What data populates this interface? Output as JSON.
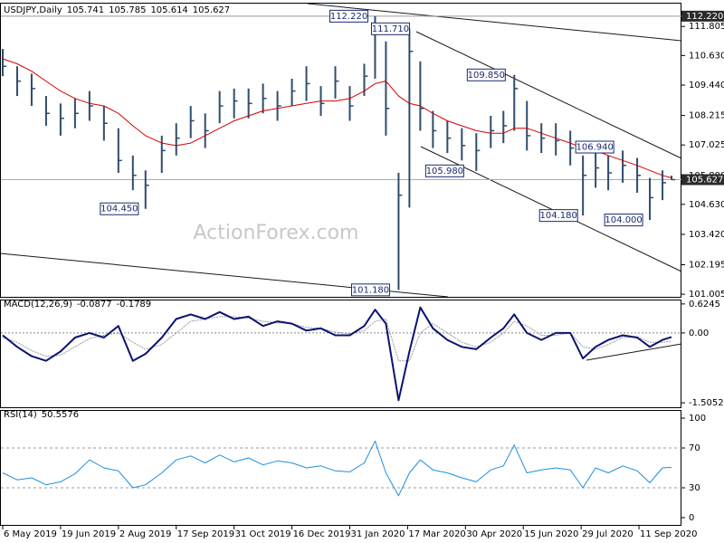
{
  "chart_data": [
    {
      "type": "ohlc",
      "title": "USDJPY,Daily",
      "header_values": [
        105.741,
        105.785,
        105.614,
        105.627
      ],
      "color": "#2f4d6b",
      "xlim": [
        -1,
        375.5
      ],
      "ylim": [
        100.9,
        112.58
      ],
      "x": [
        0,
        8,
        16,
        24,
        32,
        40,
        48,
        56,
        64,
        72,
        79,
        88,
        96,
        104,
        112,
        120,
        128,
        136,
        144,
        152,
        160,
        168,
        176,
        184,
        192,
        200,
        206,
        212,
        219,
        225,
        231,
        238,
        246,
        254,
        262,
        270,
        277,
        283,
        290,
        298,
        306,
        314,
        321,
        328,
        335,
        343,
        351,
        358,
        365,
        370
      ],
      "high": [
        110.9,
        110.2,
        109.9,
        109.0,
        108.7,
        108.9,
        109.2,
        108.6,
        107.7,
        106.6,
        106.0,
        107.4,
        107.9,
        108.6,
        108.3,
        109.2,
        109.3,
        109.3,
        109.5,
        109.2,
        109.7,
        110.2,
        109.4,
        110.2,
        109.4,
        110.3,
        112.22,
        111.2,
        105.9,
        111.71,
        110.4,
        108.4,
        108.0,
        107.7,
        107.5,
        108.2,
        108.4,
        109.85,
        108.8,
        107.9,
        107.9,
        107.6,
        106.6,
        106.94,
        106.6,
        106.8,
        106.5,
        105.7,
        106.0,
        105.785
      ],
      "low": [
        109.8,
        109.0,
        108.6,
        107.8,
        107.4,
        107.7,
        108.0,
        107.2,
        105.9,
        105.2,
        104.45,
        105.9,
        106.6,
        107.3,
        106.9,
        107.9,
        108.1,
        108.1,
        108.3,
        108.0,
        108.6,
        108.8,
        108.2,
        108.9,
        108.0,
        109.0,
        109.7,
        107.4,
        101.18,
        104.5,
        107.6,
        106.9,
        106.7,
        106.4,
        105.98,
        106.9,
        107.1,
        107.6,
        106.8,
        106.7,
        106.6,
        106.2,
        104.18,
        105.3,
        105.2,
        105.5,
        105.1,
        104.0,
        104.8,
        105.614
      ],
      "close": [
        110.2,
        109.6,
        109.3,
        108.3,
        108.1,
        108.3,
        108.6,
        107.9,
        106.4,
        105.8,
        105.4,
        106.8,
        107.3,
        108.0,
        107.6,
        108.6,
        108.8,
        108.7,
        108.9,
        108.6,
        109.2,
        109.5,
        108.7,
        109.6,
        108.6,
        109.8,
        111.9,
        108.5,
        105.0,
        110.8,
        108.5,
        107.6,
        107.3,
        107.0,
        106.8,
        107.6,
        107.8,
        109.3,
        107.4,
        107.3,
        107.2,
        106.9,
        105.8,
        106.1,
        105.9,
        106.2,
        105.8,
        104.9,
        105.5,
        105.627
      ],
      "ma": {
        "color": "#d40000",
        "values": [
          110.5,
          110.3,
          110.0,
          109.6,
          109.2,
          108.9,
          108.7,
          108.6,
          108.3,
          107.8,
          107.4,
          107.1,
          107.0,
          107.1,
          107.4,
          107.7,
          108.0,
          108.2,
          108.4,
          108.5,
          108.6,
          108.7,
          108.8,
          108.8,
          108.9,
          109.2,
          109.5,
          109.6,
          109.0,
          108.7,
          108.6,
          108.3,
          108.0,
          107.8,
          107.6,
          107.5,
          107.5,
          107.7,
          107.7,
          107.5,
          107.3,
          107.1,
          106.9,
          106.8,
          106.6,
          106.4,
          106.2,
          106.0,
          105.8,
          105.7
        ]
      },
      "yticks": [
        {
          "value": 111.805,
          "label": "111.805"
        },
        {
          "value": 110.63,
          "label": "110.630"
        },
        {
          "value": 109.44,
          "label": "109.440"
        },
        {
          "value": 108.215,
          "label": "108.215"
        },
        {
          "value": 107.025,
          "label": "107.025"
        },
        {
          "value": 105.8,
          "label": "105.800"
        },
        {
          "value": 104.63,
          "label": "104.630"
        },
        {
          "value": 103.42,
          "label": "103.420"
        },
        {
          "value": 102.195,
          "label": "102.195"
        },
        {
          "value": 101.005,
          "label": "101.005"
        }
      ],
      "level": {
        "value": 112.22,
        "label": "112.220"
      },
      "last": 105.627,
      "annotations": [
        {
          "x": 181,
          "value": 112.22,
          "label": "112.220"
        },
        {
          "x": 204,
          "value": 111.71,
          "label": "111.710"
        },
        {
          "x": 257,
          "value": 109.85,
          "label": "109.850"
        },
        {
          "x": 234,
          "value": 105.98,
          "label": "105.980"
        },
        {
          "x": 54,
          "value": 104.45,
          "label": "104.450"
        },
        {
          "x": 193,
          "value": 101.18,
          "label": "101.180"
        },
        {
          "x": 317,
          "value": 106.94,
          "label": "106.940"
        },
        {
          "x": 297,
          "value": 104.18,
          "label": "104.180"
        },
        {
          "x": 333,
          "value": 104.0,
          "label": "104.000"
        }
      ],
      "watermark": "ActionForex.com"
    },
    {
      "type": "line",
      "title": "MACD(12,26,9)",
      "header_values": [
        -0.0877,
        -0.1789
      ],
      "xlim": [
        -1,
        375.5
      ],
      "ylim": [
        -1.6,
        0.68
      ],
      "x": [
        0,
        8,
        16,
        24,
        32,
        40,
        48,
        56,
        64,
        72,
        79,
        88,
        96,
        104,
        112,
        120,
        128,
        136,
        144,
        152,
        160,
        168,
        176,
        184,
        192,
        200,
        206,
        212,
        219,
        225,
        231,
        238,
        246,
        254,
        262,
        270,
        277,
        283,
        290,
        298,
        306,
        314,
        321,
        328,
        335,
        343,
        351,
        358,
        365,
        370
      ],
      "series": [
        {
          "color": "#0a1470",
          "width": 2,
          "values": [
            -0.05,
            -0.3,
            -0.5,
            -0.6,
            -0.4,
            -0.1,
            0.0,
            -0.1,
            0.15,
            -0.6,
            -0.45,
            -0.1,
            0.3,
            0.4,
            0.3,
            0.45,
            0.3,
            0.35,
            0.15,
            0.25,
            0.2,
            0.05,
            0.1,
            -0.05,
            -0.05,
            0.15,
            0.5,
            0.2,
            -1.45,
            -0.4,
            0.55,
            0.1,
            -0.15,
            -0.3,
            -0.35,
            -0.1,
            0.1,
            0.4,
            0.0,
            -0.15,
            0.0,
            0.0,
            -0.55,
            -0.3,
            -0.15,
            -0.05,
            -0.1,
            -0.3,
            -0.15,
            -0.0877
          ]
        },
        {
          "color": "#9a9a9a",
          "width": 1,
          "values": [
            -0.1,
            -0.2,
            -0.38,
            -0.5,
            -0.48,
            -0.3,
            -0.12,
            -0.05,
            0.0,
            -0.2,
            -0.35,
            -0.25,
            0.0,
            0.25,
            0.3,
            0.35,
            0.35,
            0.32,
            0.25,
            0.22,
            0.2,
            0.12,
            0.1,
            0.02,
            -0.02,
            0.05,
            0.25,
            0.3,
            -0.6,
            -0.6,
            0.0,
            0.2,
            0.0,
            -0.2,
            -0.3,
            -0.2,
            0.0,
            0.25,
            0.15,
            -0.05,
            -0.05,
            0.0,
            -0.3,
            -0.35,
            -0.25,
            -0.1,
            -0.08,
            -0.2,
            -0.2,
            -0.1789
          ]
        }
      ],
      "yticks": [
        0.6245,
        {
          "value": 0,
          "label": "0.00"
        },
        -1.5052
      ]
    },
    {
      "type": "line",
      "title": "RSI(14)",
      "header_values": [
        50.5576
      ],
      "xlim": [
        -1,
        375.5
      ],
      "ylim": [
        -7.3,
        106.4
      ],
      "x": [
        0,
        8,
        16,
        24,
        32,
        40,
        48,
        56,
        64,
        72,
        79,
        88,
        96,
        104,
        112,
        120,
        128,
        136,
        144,
        152,
        160,
        168,
        176,
        184,
        192,
        200,
        206,
        212,
        219,
        225,
        231,
        238,
        246,
        254,
        262,
        270,
        277,
        283,
        290,
        298,
        306,
        314,
        321,
        328,
        335,
        343,
        351,
        358,
        365,
        370
      ],
      "series": [
        {
          "color": "#1e8fe0",
          "width": 1,
          "values": [
            45,
            38,
            40,
            33,
            36,
            44,
            58,
            50,
            47,
            30,
            33,
            45,
            58,
            62,
            55,
            63,
            56,
            60,
            53,
            57,
            55,
            50,
            52,
            47,
            46,
            55,
            77,
            45,
            22,
            45,
            58,
            48,
            45,
            40,
            36,
            48,
            52,
            73,
            45,
            48,
            50,
            48,
            30,
            50,
            45,
            52,
            47,
            35,
            50,
            50.5576
          ]
        }
      ],
      "yticks": [
        100,
        70,
        30,
        0
      ],
      "xticks": [
        {
          "value": 0,
          "label": "6 May 2019"
        },
        {
          "value": 32,
          "label": "19 Jun 2019"
        },
        {
          "value": 64,
          "label": "2 Aug 2019"
        },
        {
          "value": 96,
          "label": "17 Sep 2019"
        },
        {
          "value": 128,
          "label": "31 Oct 2019"
        },
        {
          "value": 160,
          "label": "16 Dec 2019"
        },
        {
          "value": 192,
          "label": "31 Jan 2020"
        },
        {
          "value": 224,
          "label": "17 Mar 2020"
        },
        {
          "value": 256,
          "label": "30 Apr 2020"
        },
        {
          "value": 288,
          "label": "15 Jun 2020"
        },
        {
          "value": 320,
          "label": "29 Jul 2020"
        },
        {
          "value": 352,
          "label": "11 Sep 2020"
        }
      ]
    }
  ]
}
